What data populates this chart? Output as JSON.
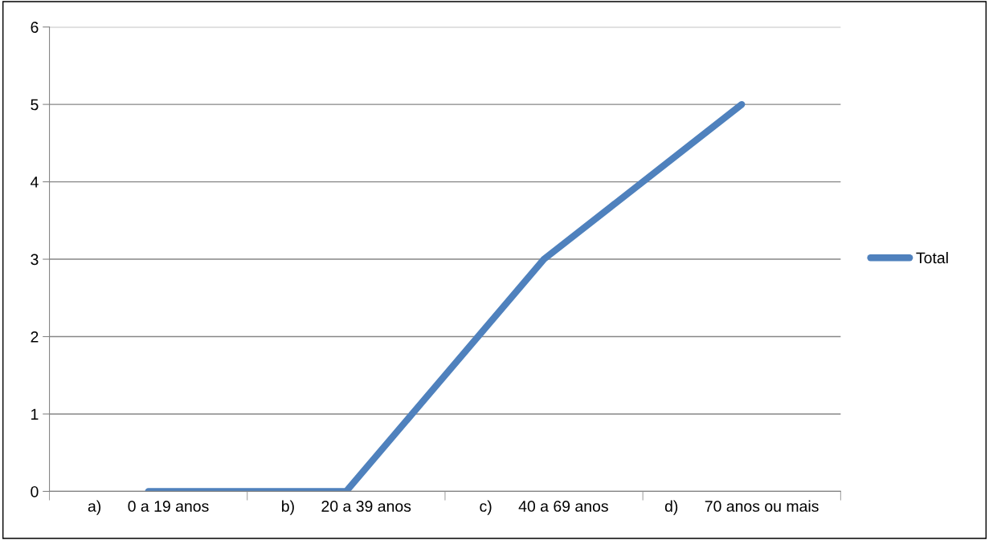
{
  "chart_data": {
    "type": "line",
    "categories": [
      "a)      0 a 19 anos",
      "b)      20 a 39 anos",
      "c)      40 a 69 anos",
      "d)      70 anos ou mais"
    ],
    "series": [
      {
        "name": "Total",
        "color": "#4f81bd",
        "values": [
          0,
          0,
          3,
          5
        ]
      }
    ],
    "ylim": [
      0,
      6
    ],
    "yticks": [
      0,
      1,
      2,
      3,
      4,
      5,
      6
    ],
    "grid": "y",
    "legend": "right",
    "marker": "none",
    "line_style": "solid"
  }
}
